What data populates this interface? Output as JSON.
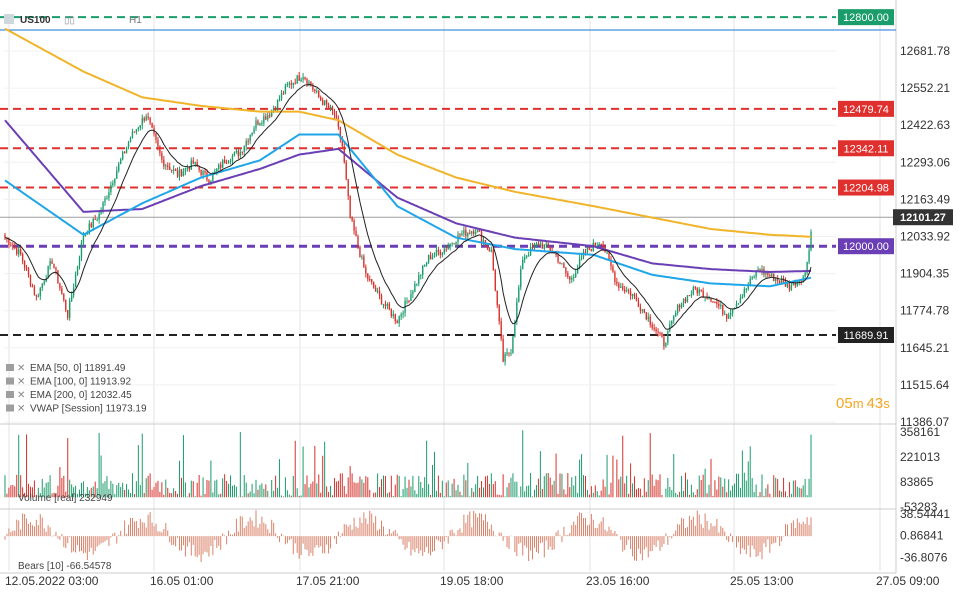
{
  "header": {
    "symbol": "US100",
    "timeframe": "H1"
  },
  "price_axis": {
    "ticks": [
      "12681.78",
      "12552.21",
      "12422.63",
      "12293.06",
      "12163.49",
      "12033.92",
      "11904.35",
      "11774.78",
      "11645.21",
      "11515.64",
      "11386.07"
    ],
    "min": 11386.07,
    "max": 12811
  },
  "time_axis": [
    "12.05.2022 03:00",
    "16.05 01:00",
    "17.05 21:00",
    "19.05 18:00",
    "23.05 16:00",
    "25.05 13:00",
    "27.05 09:00"
  ],
  "levels": [
    {
      "value": 12800.0,
      "label": "12800.00",
      "color": "#1a9c6b",
      "style": "dashed"
    },
    {
      "value": 12479.74,
      "label": "12479.74",
      "color": "#e0302e",
      "style": "dashed"
    },
    {
      "value": 12342.11,
      "label": "12342.11",
      "color": "#e0302e",
      "style": "dashed"
    },
    {
      "value": 12204.98,
      "label": "12204.98",
      "color": "#e0302e",
      "style": "dashed"
    },
    {
      "value": 12000.0,
      "label": "12000.00",
      "color": "#6a3fb5",
      "style": "dashed"
    },
    {
      "value": 11689.91,
      "label": "11689.91",
      "color": "#222222",
      "style": "dashed"
    }
  ],
  "current_price": {
    "value": 12101.27,
    "label": "12101.27",
    "color": "#333333"
  },
  "countdown": {
    "minutes": "05",
    "m": "m",
    "seconds": "43",
    "s": "s"
  },
  "legend": [
    {
      "text": "EMA [50, 0] 11891.49",
      "color": "#1fa6e8"
    },
    {
      "text": "EMA [100, 0] 11913.92",
      "color": "#6a3fb5"
    },
    {
      "text": "EMA [200, 0] 12032.45",
      "color": "#f0b429"
    },
    {
      "text": "VWAP [Session] 11973.19",
      "color": "#333333"
    }
  ],
  "volume_panel": {
    "label": "Volume [real] 232949",
    "ticks": [
      "358161",
      "221013",
      "83865",
      "-53283"
    ]
  },
  "bears_panel": {
    "label": "Bears [10] -66.54578",
    "ticks": [
      "38.54441",
      "0.86841",
      "-36.8076"
    ]
  },
  "colors": {
    "up": "#1a9c6b",
    "down": "#d6312b",
    "ema50": "#1fa6e8",
    "ema100": "#6a3fb5",
    "ema200": "#f0b429",
    "bears": "#d9826a",
    "grid": "#e3e3e3"
  },
  "chart_data": {
    "type": "candlestick",
    "symbol": "US100",
    "timeframe": "H1",
    "x_ticks": [
      "12.05.2022 03:00",
      "16.05 01:00",
      "17.05 21:00",
      "19.05 18:00",
      "23.05 16:00",
      "25.05 13:00",
      "27.05 09:00"
    ],
    "close_path": [
      [
        0,
        12030
      ],
      [
        8,
        11970
      ],
      [
        16,
        11820
      ],
      [
        24,
        11950
      ],
      [
        32,
        11760
      ],
      [
        40,
        12040
      ],
      [
        48,
        12110
      ],
      [
        56,
        12250
      ],
      [
        64,
        12380
      ],
      [
        72,
        12460
      ],
      [
        80,
        12300
      ],
      [
        88,
        12250
      ],
      [
        96,
        12290
      ],
      [
        104,
        12230
      ],
      [
        112,
        12300
      ],
      [
        120,
        12330
      ],
      [
        128,
        12430
      ],
      [
        136,
        12470
      ],
      [
        144,
        12560
      ],
      [
        152,
        12600
      ],
      [
        160,
        12520
      ],
      [
        168,
        12460
      ],
      [
        172,
        12350
      ],
      [
        176,
        12100
      ],
      [
        184,
        11900
      ],
      [
        192,
        11810
      ],
      [
        200,
        11740
      ],
      [
        208,
        11850
      ],
      [
        216,
        11960
      ],
      [
        224,
        11990
      ],
      [
        232,
        12040
      ],
      [
        240,
        12060
      ],
      [
        248,
        11980
      ],
      [
        254,
        11600
      ],
      [
        258,
        11640
      ],
      [
        264,
        11960
      ],
      [
        272,
        12010
      ],
      [
        280,
        11980
      ],
      [
        288,
        11880
      ],
      [
        296,
        11980
      ],
      [
        304,
        12020
      ],
      [
        312,
        11870
      ],
      [
        320,
        11830
      ],
      [
        328,
        11750
      ],
      [
        336,
        11660
      ],
      [
        344,
        11800
      ],
      [
        352,
        11850
      ],
      [
        360,
        11820
      ],
      [
        368,
        11760
      ],
      [
        376,
        11830
      ],
      [
        384,
        11920
      ],
      [
        392,
        11890
      ],
      [
        400,
        11860
      ],
      [
        408,
        11900
      ],
      [
        412,
        12100
      ]
    ],
    "candle_count": 412,
    "ema50": [
      [
        0,
        12230
      ],
      [
        40,
        12040
      ],
      [
        70,
        12150
      ],
      [
        100,
        12240
      ],
      [
        130,
        12300
      ],
      [
        150,
        12390
      ],
      [
        170,
        12390
      ],
      [
        200,
        12140
      ],
      [
        230,
        12030
      ],
      [
        260,
        11990
      ],
      [
        300,
        11970
      ],
      [
        330,
        11900
      ],
      [
        360,
        11870
      ],
      [
        390,
        11860
      ],
      [
        412,
        11891.49
      ]
    ],
    "ema100": [
      [
        0,
        12440
      ],
      [
        40,
        12120
      ],
      [
        70,
        12130
      ],
      [
        100,
        12210
      ],
      [
        130,
        12270
      ],
      [
        150,
        12320
      ],
      [
        170,
        12340
      ],
      [
        200,
        12170
      ],
      [
        230,
        12080
      ],
      [
        260,
        12030
      ],
      [
        300,
        12000
      ],
      [
        330,
        11940
      ],
      [
        360,
        11920
      ],
      [
        390,
        11910
      ],
      [
        412,
        11913.92
      ]
    ],
    "ema200": [
      [
        0,
        12760
      ],
      [
        40,
        12610
      ],
      [
        70,
        12520
      ],
      [
        100,
        12490
      ],
      [
        130,
        12470
      ],
      [
        150,
        12470
      ],
      [
        170,
        12440
      ],
      [
        200,
        12320
      ],
      [
        230,
        12240
      ],
      [
        260,
        12190
      ],
      [
        300,
        12140
      ],
      [
        330,
        12100
      ],
      [
        360,
        12060
      ],
      [
        390,
        12040
      ],
      [
        412,
        12032.45
      ]
    ],
    "vwap_last": 11973.19,
    "ylim": [
      11386.07,
      12811
    ],
    "volume": {
      "ylim": [
        -53283,
        390000
      ],
      "last": 232949
    },
    "bears": {
      "period": 10,
      "ylim": [
        -60,
        45
      ],
      "last": -66.54578
    }
  }
}
